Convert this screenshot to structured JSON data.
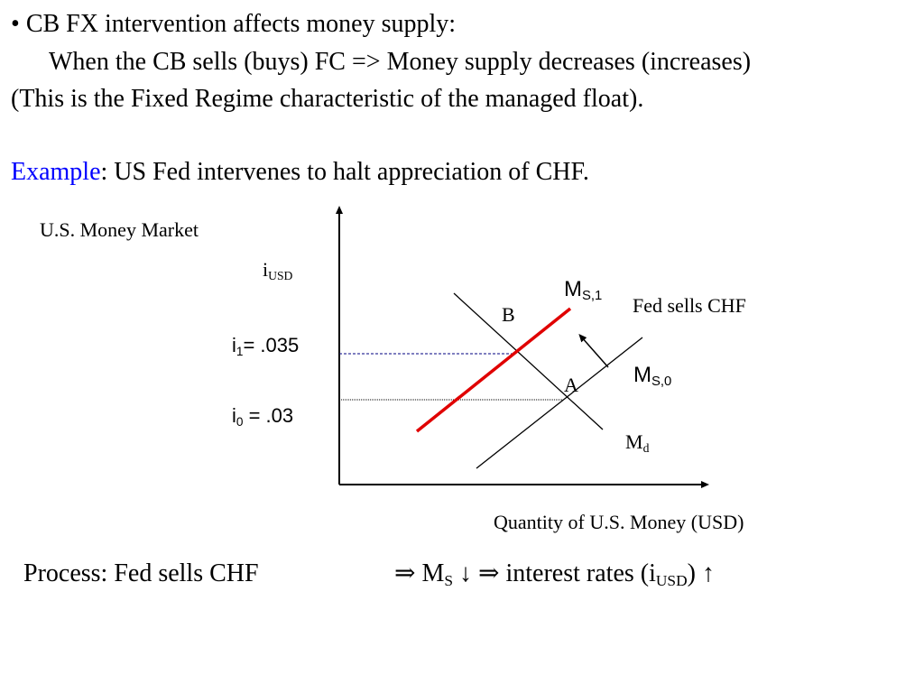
{
  "bullet": {
    "symbol": "•",
    "line1": "CB FX intervention affects money supply:",
    "line2": "When the CB sells (buys) FC => Money supply decreases (increases)",
    "line3": "(This is the Fixed Regime characteristic of the managed float)."
  },
  "example": {
    "keyword": "Example",
    "rest": ": US Fed intervenes to halt appreciation of CHF."
  },
  "diagram": {
    "market_title": "U.S. Money Market",
    "y_axis_label": {
      "main": "i",
      "sub": "USD"
    },
    "x_axis_label": "Quantity of U.S. Money (USD)",
    "i1_label": {
      "main": "i",
      "sub": "1",
      "rest": "= .035"
    },
    "i0_label": {
      "main": "i",
      "sub": "0",
      "rest": " = .03"
    },
    "ms1_label": {
      "main": "M",
      "sub": "S,1"
    },
    "ms0_label": {
      "main": "M",
      "sub": "S,0"
    },
    "md_label": {
      "main": "M",
      "sub": "d"
    },
    "point_b": "B",
    "point_a": "A",
    "shift_note": "Fed sells CHF",
    "colors": {
      "ms1_curve": "#e00000",
      "curves": "#000000"
    }
  },
  "process": {
    "left": "Process: Fed sells CHF",
    "arrow1": "⇒",
    "ms_main": "M",
    "ms_sub": "S",
    "down_arrow": "↓",
    "arrow2": "⇒",
    "rates_text": "interest rates (i",
    "rates_sub": "USD",
    "rates_close": ")",
    "up_arrow": "↑"
  }
}
